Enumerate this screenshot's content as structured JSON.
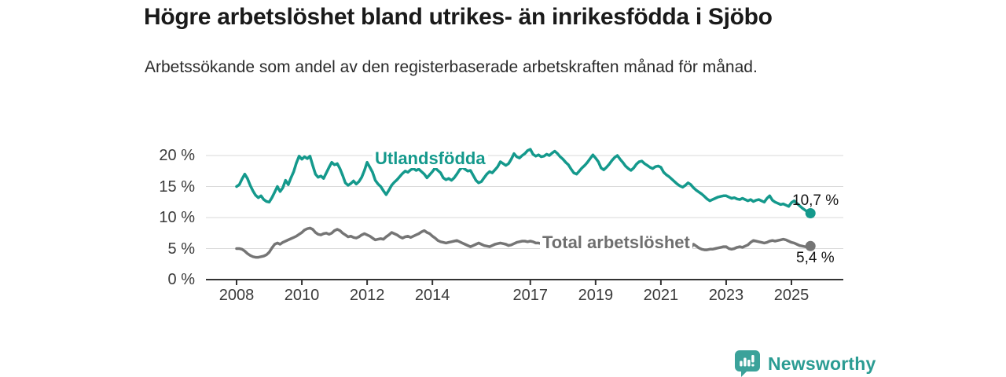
{
  "header": {
    "title": "Högre arbetslöshet bland utrikes- än inrikesfödda i Sjöbo",
    "subtitle": "Arbetssökande som andel av den registerbaserade arbetskraften månad för månad."
  },
  "footer": {
    "brand": "Newsworthy",
    "logo_icon": "bar-chart-speech-bubble-icon"
  },
  "colors": {
    "teal_series": "#14998c",
    "gray_series": "#757575",
    "axis": "#333333",
    "gridline": "#d9d9d9",
    "title_text": "#1a1a1a",
    "brand_teal": "#2b9c93"
  },
  "chart_data": {
    "type": "line",
    "title": "Högre arbetslöshet bland utrikes- än inrikesfödda i Sjöbo",
    "subtitle": "Arbetssökande som andel av den registerbaserade arbetskraften månad för månad.",
    "x_unit": "month",
    "x_range": [
      "2008-01",
      "2025-08"
    ],
    "ylim": [
      0,
      22
    ],
    "grid": "horizontal",
    "legend_position": "inline-labels",
    "y_axis": {
      "ticks": [
        {
          "label": "0 %",
          "value": 0
        },
        {
          "label": "5 %",
          "value": 5
        },
        {
          "label": "10 %",
          "value": 10
        },
        {
          "label": "15 %",
          "value": 15
        },
        {
          "label": "20 %",
          "value": 20
        }
      ]
    },
    "x_axis": {
      "ticks": [
        {
          "label": "2008",
          "year": 2008
        },
        {
          "label": "2010",
          "year": 2010
        },
        {
          "label": "2012",
          "year": 2012
        },
        {
          "label": "2014",
          "year": 2014
        },
        {
          "label": "2017",
          "year": 2017
        },
        {
          "label": "2019",
          "year": 2019
        },
        {
          "label": "2021",
          "year": 2021
        },
        {
          "label": "2023",
          "year": 2023
        },
        {
          "label": "2025",
          "year": 2025
        }
      ]
    },
    "series": [
      {
        "name": "Utlandsfödda",
        "color": "#14998c",
        "end_label": "10,7 %",
        "end_value": 10.7,
        "values": [
          15.0,
          15.3,
          16.2,
          17.0,
          16.3,
          15.2,
          14.3,
          13.6,
          13.2,
          13.5,
          12.9,
          12.6,
          12.5,
          13.2,
          14.1,
          15.0,
          14.2,
          14.8,
          16.0,
          15.3,
          16.4,
          17.4,
          18.8,
          19.9,
          19.4,
          19.8,
          19.5,
          19.9,
          18.4,
          17.0,
          16.5,
          16.7,
          16.3,
          17.2,
          18.1,
          18.9,
          18.5,
          18.7,
          17.9,
          16.8,
          15.6,
          15.2,
          15.5,
          15.9,
          15.4,
          15.8,
          16.5,
          17.6,
          18.9,
          18.1,
          17.3,
          16.0,
          15.4,
          15.0,
          14.3,
          13.7,
          14.4,
          15.2,
          15.7,
          16.1,
          16.6,
          17.1,
          17.5,
          17.3,
          17.7,
          17.9,
          17.6,
          17.8,
          17.4,
          17.0,
          16.4,
          16.9,
          17.4,
          18.0,
          17.6,
          17.2,
          16.4,
          16.1,
          16.3,
          16.0,
          16.4,
          17.0,
          17.7,
          18.1,
          17.8,
          17.5,
          17.6,
          16.8,
          16.0,
          15.6,
          15.8,
          16.4,
          17.0,
          17.4,
          17.2,
          17.7,
          18.2,
          19.0,
          18.7,
          18.4,
          18.7,
          19.4,
          20.3,
          19.8,
          19.6,
          20.0,
          20.3,
          20.8,
          21.0,
          20.2,
          19.9,
          20.1,
          19.8,
          19.9,
          20.2,
          20.0,
          20.4,
          20.7,
          20.3,
          19.8,
          19.4,
          18.9,
          18.5,
          17.8,
          17.2,
          17.0,
          17.5,
          18.0,
          18.4,
          18.9,
          19.5,
          20.1,
          19.6,
          19.0,
          18.0,
          17.7,
          18.1,
          18.6,
          19.2,
          19.7,
          20.0,
          19.4,
          18.9,
          18.3,
          17.9,
          17.6,
          18.0,
          18.6,
          19.0,
          19.1,
          18.7,
          18.4,
          18.1,
          17.9,
          18.2,
          18.3,
          18.1,
          17.3,
          16.9,
          16.6,
          16.2,
          15.8,
          15.4,
          15.1,
          14.9,
          15.2,
          15.6,
          15.3,
          14.8,
          14.4,
          14.1,
          13.8,
          13.4,
          13.0,
          12.7,
          12.9,
          13.1,
          13.3,
          13.4,
          13.5,
          13.5,
          13.3,
          13.1,
          13.2,
          13.0,
          12.9,
          13.1,
          12.9,
          12.7,
          12.9,
          12.6,
          12.8,
          12.9,
          12.7,
          12.5,
          13.1,
          13.5,
          12.8,
          12.5,
          12.3,
          12.1,
          12.2,
          12.0,
          11.8,
          12.4,
          12.7,
          12.3,
          11.9,
          11.5,
          11.2,
          10.9,
          10.7
        ]
      },
      {
        "name": "Total arbetslöshet",
        "color": "#757575",
        "end_label": "5,4 %",
        "end_value": 5.4,
        "values": [
          5.0,
          5.0,
          4.9,
          4.6,
          4.2,
          3.9,
          3.7,
          3.6,
          3.6,
          3.7,
          3.8,
          4.0,
          4.4,
          5.1,
          5.7,
          5.9,
          5.7,
          6.0,
          6.2,
          6.4,
          6.6,
          6.8,
          7.0,
          7.3,
          7.6,
          8.0,
          8.2,
          8.3,
          8.1,
          7.6,
          7.3,
          7.2,
          7.4,
          7.5,
          7.3,
          7.5,
          7.9,
          8.1,
          7.9,
          7.5,
          7.2,
          6.9,
          7.0,
          6.8,
          6.7,
          6.9,
          7.2,
          7.4,
          7.2,
          7.0,
          6.7,
          6.4,
          6.5,
          6.6,
          6.5,
          6.9,
          7.2,
          7.6,
          7.4,
          7.2,
          6.9,
          6.7,
          6.9,
          7.0,
          6.8,
          7.0,
          7.2,
          7.4,
          7.7,
          7.9,
          7.6,
          7.4,
          7.0,
          6.7,
          6.3,
          6.1,
          6.0,
          5.9,
          6.0,
          6.1,
          6.2,
          6.3,
          6.1,
          5.9,
          5.7,
          5.5,
          5.3,
          5.5,
          5.7,
          5.9,
          5.7,
          5.5,
          5.4,
          5.3,
          5.5,
          5.7,
          5.8,
          5.9,
          5.8,
          5.7,
          5.5,
          5.6,
          5.8,
          6.0,
          6.1,
          6.2,
          6.2,
          6.1,
          6.2,
          6.1,
          5.9,
          5.9,
          5.8,
          5.9,
          5.8,
          5.7,
          5.6,
          5.5,
          5.4,
          5.3,
          5.2,
          5.2,
          5.1,
          5.0,
          5.0,
          4.9,
          5.0,
          5.0,
          5.1,
          5.0,
          5.0,
          5.1,
          5.1,
          5.0,
          4.9,
          4.9,
          5.0,
          5.0,
          5.1,
          5.1,
          5.2,
          5.2,
          5.3,
          5.4,
          5.5,
          5.4,
          5.5,
          5.6,
          5.5,
          5.4,
          5.3,
          5.2,
          5.1,
          5.0,
          5.1,
          5.0,
          5.2,
          5.1,
          5.0,
          5.0,
          4.9,
          4.9,
          5.0,
          4.9,
          5.0,
          5.1,
          5.2,
          5.1,
          5.7,
          5.4,
          5.1,
          4.9,
          4.8,
          4.8,
          4.9,
          4.9,
          5.0,
          5.1,
          5.2,
          5.3,
          5.3,
          5.0,
          4.9,
          5.0,
          5.2,
          5.3,
          5.2,
          5.4,
          5.6,
          6.0,
          6.3,
          6.2,
          6.1,
          6.0,
          5.9,
          6.0,
          6.2,
          6.3,
          6.2,
          6.3,
          6.4,
          6.5,
          6.4,
          6.2,
          6.0,
          5.9,
          5.7,
          5.5,
          5.4,
          5.3,
          5.3,
          5.4
        ]
      }
    ]
  }
}
